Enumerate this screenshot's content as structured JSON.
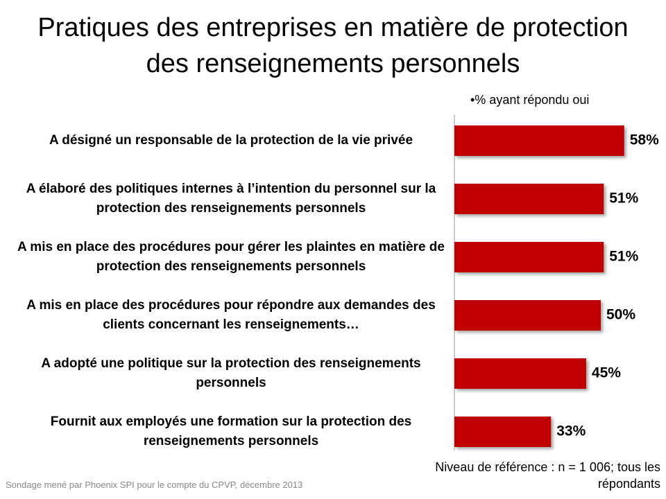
{
  "chart_data": {
    "type": "bar",
    "orientation": "horizontal",
    "title": "Pratiques des entreprises en matière de protection des renseignements personnels",
    "subtitle": "•% ayant répondu oui",
    "categories": [
      "A désigné un responsable de la protection de la vie privée",
      "A élaboré des politiques internes à l’intention du personnel sur la protection des renseignements personnels",
      "A mis en place des procédures pour gérer les plaintes en matière de protection des renseignements personnels",
      "A mis en place des procédures pour répondre aux demandes des clients concernant les renseignements…",
      "A adopté une politique sur la protection des renseignements personnels",
      "Fournit aux employés une formation sur la protection des renseignements personnels"
    ],
    "values": [
      58,
      51,
      51,
      50,
      45,
      33
    ],
    "value_labels": [
      "58%",
      "51%",
      "51%",
      "50%",
      "45%",
      "33%"
    ],
    "color": "#c00000",
    "source": "Sondage mené par Phoenix SPI pour le compte du CPVP, décembre 2013",
    "note": "Niveau de référence : n = 1 006; tous les répondants"
  }
}
